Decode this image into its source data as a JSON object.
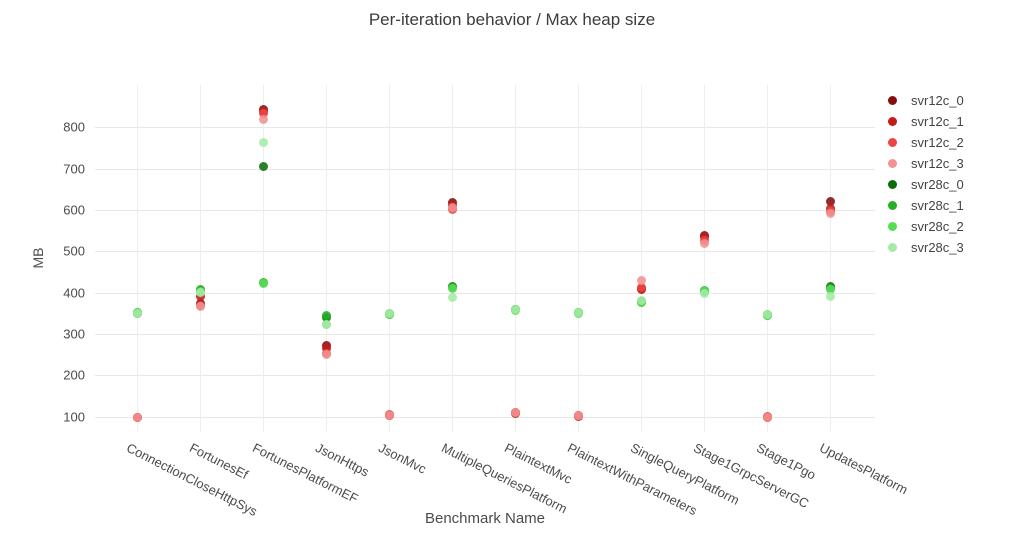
{
  "chart_data": {
    "type": "scatter",
    "title": "Per-iteration behavior / Max heap size",
    "xlabel": "Benchmark Name",
    "ylabel": "MB",
    "ylim": [
      63,
      902
    ],
    "yticks": [
      100,
      200,
      300,
      400,
      500,
      600,
      700,
      800
    ],
    "grid": true,
    "legend_position": "right",
    "categories": [
      "ConnectionCloseHttpSys",
      "FortunesEf",
      "FortunesPlatformEF",
      "JsonHttps",
      "JsonMvc",
      "MultipleQueriesPlatform",
      "PlaintextMvc",
      "PlaintextWithParameters",
      "SingleQueryPlatform",
      "Stage1GrpcServerGC",
      "Stage1Pgo",
      "UpdatesPlatform"
    ],
    "series": [
      {
        "name": "svr12c_0",
        "color": "#870d0d",
        "values": [
          98,
          374,
          843,
          272,
          104,
          619,
          109,
          102,
          410,
          539,
          99,
          621
        ]
      },
      {
        "name": "svr12c_1",
        "color": "#c51a1a",
        "values": [
          98,
          391,
          838,
          266,
          103,
          611,
          108,
          101,
          408,
          534,
          98,
          603
        ]
      },
      {
        "name": "svr12c_2",
        "color": "#ec4545",
        "values": [
          99,
          368,
          833,
          252,
          105,
          602,
          110,
          103,
          412,
          526,
          100,
          597
        ]
      },
      {
        "name": "svr12c_3",
        "color": "#f19292",
        "values": [
          98,
          366,
          818,
          250,
          104,
          606,
          109,
          102,
          430,
          518,
          99,
          592
        ]
      },
      {
        "name": "svr28c_0",
        "color": "#0b6e0b",
        "values": [
          350,
          404,
          706,
          339,
          348,
          415,
          359,
          352,
          378,
          405,
          345,
          414
        ]
      },
      {
        "name": "svr28c_1",
        "color": "#25af25",
        "values": [
          351,
          407,
          424,
          344,
          349,
          412,
          358,
          351,
          377,
          403,
          346,
          411
        ]
      },
      {
        "name": "svr28c_2",
        "color": "#56dd56",
        "values": [
          352,
          403,
          422,
          324,
          347,
          410,
          357,
          350,
          376,
          404,
          344,
          408
        ]
      },
      {
        "name": "svr28c_3",
        "color": "#a5eba5",
        "values": [
          350,
          400,
          764,
          322,
          350,
          388,
          360,
          353,
          380,
          397,
          347,
          391
        ]
      }
    ]
  }
}
